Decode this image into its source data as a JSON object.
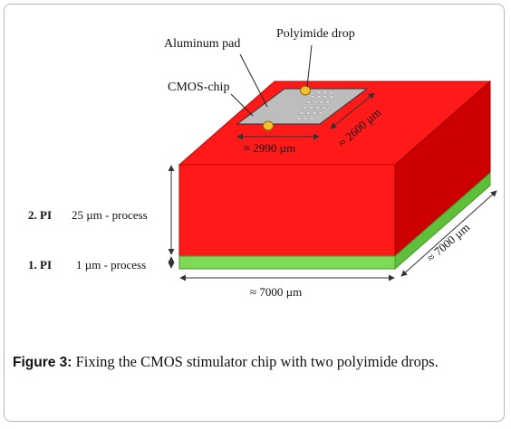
{
  "diagram": {
    "labels": {
      "aluminum_pad": "Aluminum pad",
      "polyimide_drop": "Polyimide drop",
      "cmos_chip": "CMOS-chip",
      "chip_width": "≈ 2990 µm",
      "chip_depth": "≈ 2600 µm",
      "layer2_name": "2. PI",
      "layer2_desc": "25 µm - process",
      "layer1_name": "1. PI",
      "layer1_desc": "1 µm - process",
      "block_width": "≈ 7000 µm",
      "block_depth": "≈ 7000 µm"
    },
    "colors": {
      "pi_layer_2": "#ff1a1a",
      "pi_layer_1": "#7ed957",
      "chip": "#bdbdbd",
      "drop": "#f2c12e"
    }
  },
  "caption": {
    "label": "Figure 3:",
    "text": " Fixing the CMOS stimulator chip with two polyimide drops."
  }
}
